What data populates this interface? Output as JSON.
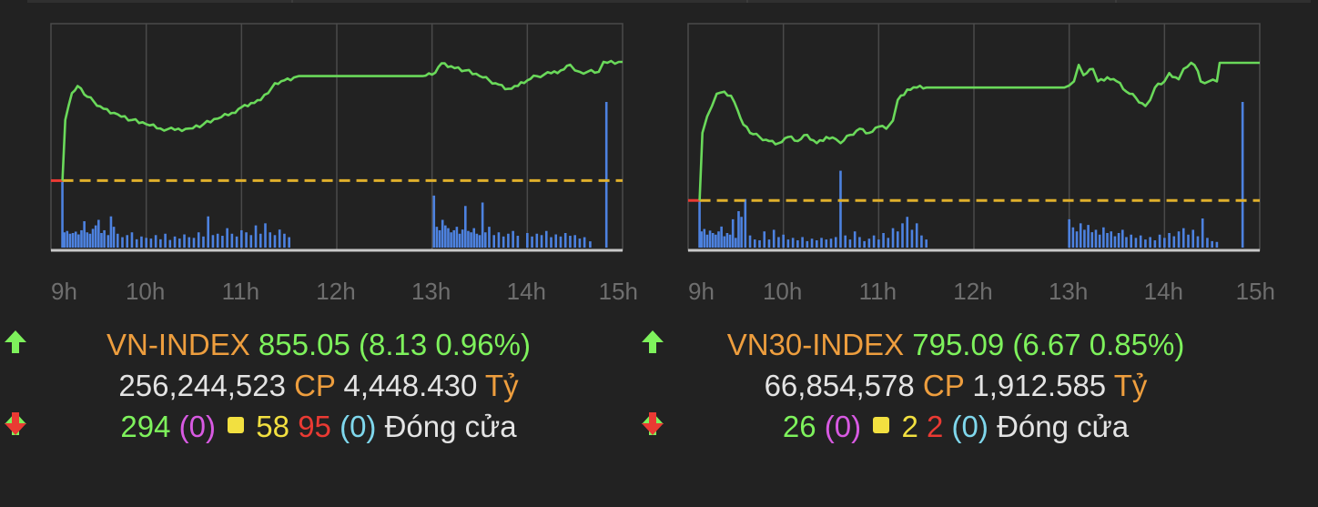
{
  "colors": {
    "background": "#222222",
    "price_line": "#6ad95a",
    "reference_line": "#e0b02c",
    "volume_bar": "#4d82e0",
    "axis": "#c8c8c8",
    "grid": "#4a4a4a",
    "up": "#7ef25c",
    "down": "#ea3a33",
    "unchanged": "#f2e040"
  },
  "icons": {
    "up": "arrow-up-icon",
    "down": "arrow-down-icon",
    "unchanged": "square-icon"
  },
  "panels": [
    {
      "index_name": "VN-INDEX",
      "value": "855.05",
      "change": "(8.13 0.96%)",
      "volume": "256,244,523",
      "volume_unit": "CP",
      "turnover": "4,448.430",
      "turnover_unit": "Tỷ",
      "advances": "294",
      "advances_ceiling": "(0)",
      "unchanged": "58",
      "declines": "95",
      "declines_floor": "(0)",
      "status": "Đóng cửa"
    },
    {
      "index_name": "VN30-INDEX",
      "value": "795.09",
      "change": "(6.67 0.85%)",
      "volume": "66,854,578",
      "volume_unit": "CP",
      "turnover": "1,912.585",
      "turnover_unit": "Tỷ",
      "advances": "26",
      "advances_ceiling": "(0)",
      "unchanged": "2",
      "declines": "2",
      "declines_floor": "(0)",
      "status": "Đóng cửa"
    }
  ],
  "chart_data": [
    {
      "type": "line",
      "series_name": "VN-INDEX",
      "x_ticks": [
        "9h",
        "10h",
        "11h",
        "12h",
        "13h",
        "14h",
        "15h"
      ],
      "x_range": [
        9,
        15
      ],
      "y_range": [
        842,
        858
      ],
      "reference": 846.92,
      "close": 855.05,
      "grid": true,
      "price": [
        [
          9.0,
          846.92
        ],
        [
          9.12,
          846.92
        ],
        [
          9.15,
          851.2
        ],
        [
          9.22,
          853.1
        ],
        [
          9.28,
          853.6
        ],
        [
          9.35,
          853.0
        ],
        [
          9.45,
          852.5
        ],
        [
          9.55,
          852.0
        ],
        [
          9.7,
          851.6
        ],
        [
          9.85,
          851.2
        ],
        [
          10.0,
          850.9
        ],
        [
          10.15,
          850.6
        ],
        [
          10.3,
          850.5
        ],
        [
          10.45,
          850.6
        ],
        [
          10.6,
          850.9
        ],
        [
          10.75,
          851.3
        ],
        [
          10.9,
          851.7
        ],
        [
          11.0,
          852.1
        ],
        [
          11.1,
          852.4
        ],
        [
          11.2,
          852.6
        ],
        [
          11.28,
          853.1
        ],
        [
          11.35,
          853.8
        ],
        [
          11.45,
          854.0
        ],
        [
          11.55,
          854.2
        ],
        [
          11.6,
          854.3
        ],
        [
          12.9,
          854.3
        ],
        [
          13.0,
          854.4
        ],
        [
          13.1,
          855.2
        ],
        [
          13.2,
          855.0
        ],
        [
          13.35,
          854.7
        ],
        [
          13.5,
          854.3
        ],
        [
          13.6,
          854.0
        ],
        [
          13.7,
          853.7
        ],
        [
          13.8,
          853.4
        ],
        [
          13.9,
          853.6
        ],
        [
          14.0,
          854.0
        ],
        [
          14.1,
          854.3
        ],
        [
          14.25,
          854.5
        ],
        [
          14.35,
          854.7
        ],
        [
          14.45,
          855.1
        ],
        [
          14.5,
          854.7
        ],
        [
          14.55,
          854.6
        ],
        [
          14.75,
          854.6
        ],
        [
          14.8,
          855.3
        ],
        [
          15.0,
          855.3
        ]
      ],
      "volume": [
        [
          9.12,
          9.5
        ],
        [
          9.14,
          2.2
        ],
        [
          9.17,
          2.4
        ],
        [
          9.2,
          2.0
        ],
        [
          9.23,
          2.1
        ],
        [
          9.26,
          2.3
        ],
        [
          9.29,
          1.9
        ],
        [
          9.32,
          2.5
        ],
        [
          9.35,
          3.8
        ],
        [
          9.38,
          2.2
        ],
        [
          9.41,
          2.0
        ],
        [
          9.44,
          2.7
        ],
        [
          9.47,
          3.2
        ],
        [
          9.5,
          4.0
        ],
        [
          9.53,
          2.1
        ],
        [
          9.56,
          2.5
        ],
        [
          9.6,
          1.8
        ],
        [
          9.63,
          4.5
        ],
        [
          9.66,
          3.0
        ],
        [
          9.7,
          2.0
        ],
        [
          9.75,
          1.5
        ],
        [
          9.8,
          1.8
        ],
        [
          9.85,
          2.2
        ],
        [
          9.9,
          1.2
        ],
        [
          9.95,
          1.6
        ],
        [
          10.0,
          1.4
        ],
        [
          10.05,
          1.3
        ],
        [
          10.1,
          1.8
        ],
        [
          10.15,
          1.2
        ],
        [
          10.2,
          2.0
        ],
        [
          10.25,
          1.1
        ],
        [
          10.3,
          1.6
        ],
        [
          10.35,
          1.3
        ],
        [
          10.4,
          1.9
        ],
        [
          10.45,
          1.5
        ],
        [
          10.5,
          1.4
        ],
        [
          10.55,
          2.2
        ],
        [
          10.6,
          1.6
        ],
        [
          10.65,
          4.5
        ],
        [
          10.7,
          1.8
        ],
        [
          10.75,
          2.0
        ],
        [
          10.8,
          1.7
        ],
        [
          10.85,
          2.8
        ],
        [
          10.9,
          2.0
        ],
        [
          10.95,
          1.6
        ],
        [
          11.0,
          2.5
        ],
        [
          11.05,
          2.2
        ],
        [
          11.1,
          1.8
        ],
        [
          11.15,
          3.2
        ],
        [
          11.2,
          2.0
        ],
        [
          11.25,
          3.5
        ],
        [
          11.3,
          2.2
        ],
        [
          11.35,
          1.8
        ],
        [
          11.4,
          2.6
        ],
        [
          11.45,
          2.0
        ],
        [
          11.5,
          1.5
        ],
        [
          13.02,
          7.5
        ],
        [
          13.05,
          3.0
        ],
        [
          13.08,
          2.5
        ],
        [
          13.11,
          4.0
        ],
        [
          13.14,
          3.2
        ],
        [
          13.17,
          2.8
        ],
        [
          13.2,
          2.2
        ],
        [
          13.23,
          2.5
        ],
        [
          13.26,
          3.0
        ],
        [
          13.29,
          2.0
        ],
        [
          13.32,
          2.6
        ],
        [
          13.35,
          6.0
        ],
        [
          13.38,
          2.4
        ],
        [
          13.41,
          2.2
        ],
        [
          13.44,
          2.8
        ],
        [
          13.47,
          2.0
        ],
        [
          13.5,
          1.8
        ],
        [
          13.53,
          6.5
        ],
        [
          13.56,
          2.2
        ],
        [
          13.6,
          3.0
        ],
        [
          13.65,
          1.8
        ],
        [
          13.7,
          2.2
        ],
        [
          13.75,
          1.6
        ],
        [
          13.8,
          2.0
        ],
        [
          13.85,
          2.4
        ],
        [
          13.9,
          1.7
        ],
        [
          14.0,
          2.1
        ],
        [
          14.05,
          1.6
        ],
        [
          14.1,
          2.0
        ],
        [
          14.15,
          1.8
        ],
        [
          14.2,
          2.4
        ],
        [
          14.25,
          1.5
        ],
        [
          14.3,
          1.9
        ],
        [
          14.35,
          1.6
        ],
        [
          14.4,
          2.1
        ],
        [
          14.45,
          1.7
        ],
        [
          14.5,
          1.8
        ],
        [
          14.55,
          1.3
        ],
        [
          14.6,
          1.5
        ],
        [
          14.66,
          0.9
        ],
        [
          14.83,
          21.0
        ]
      ]
    },
    {
      "type": "line",
      "series_name": "VN30-INDEX",
      "x_ticks": [
        "9h",
        "10h",
        "11h",
        "12h",
        "13h",
        "14h",
        "15h"
      ],
      "x_range": [
        9,
        15
      ],
      "y_range": [
        786,
        797
      ],
      "reference": 788.42,
      "close": 795.09,
      "grid": true,
      "price": [
        [
          9.0,
          788.42
        ],
        [
          9.12,
          788.42
        ],
        [
          9.15,
          791.7
        ],
        [
          9.2,
          792.5
        ],
        [
          9.25,
          793.0
        ],
        [
          9.3,
          793.6
        ],
        [
          9.38,
          793.7
        ],
        [
          9.45,
          793.5
        ],
        [
          9.52,
          792.8
        ],
        [
          9.58,
          792.1
        ],
        [
          9.65,
          791.7
        ],
        [
          9.75,
          791.5
        ],
        [
          9.85,
          791.3
        ],
        [
          9.95,
          791.2
        ],
        [
          10.05,
          791.5
        ],
        [
          10.15,
          791.3
        ],
        [
          10.25,
          791.6
        ],
        [
          10.35,
          791.2
        ],
        [
          10.45,
          791.5
        ],
        [
          10.55,
          791.4
        ],
        [
          10.6,
          791.2
        ],
        [
          10.7,
          791.6
        ],
        [
          10.8,
          791.9
        ],
        [
          10.9,
          791.7
        ],
        [
          11.0,
          792.0
        ],
        [
          11.08,
          791.9
        ],
        [
          11.15,
          792.3
        ],
        [
          11.2,
          793.3
        ],
        [
          11.3,
          793.8
        ],
        [
          11.4,
          793.9
        ],
        [
          11.5,
          793.9
        ],
        [
          12.95,
          793.9
        ],
        [
          13.0,
          794.0
        ],
        [
          13.05,
          794.2
        ],
        [
          13.1,
          795.0
        ],
        [
          13.15,
          794.5
        ],
        [
          13.25,
          794.8
        ],
        [
          13.3,
          794.2
        ],
        [
          13.4,
          794.4
        ],
        [
          13.5,
          794.2
        ],
        [
          13.6,
          793.7
        ],
        [
          13.7,
          793.4
        ],
        [
          13.8,
          793.0
        ],
        [
          13.85,
          793.3
        ],
        [
          13.9,
          793.9
        ],
        [
          14.0,
          794.2
        ],
        [
          14.05,
          794.6
        ],
        [
          14.15,
          794.3
        ],
        [
          14.2,
          794.8
        ],
        [
          14.28,
          795.1
        ],
        [
          14.35,
          794.7
        ],
        [
          14.38,
          794.2
        ],
        [
          14.55,
          794.2
        ],
        [
          14.58,
          795.1
        ],
        [
          15.0,
          795.1
        ]
      ],
      "volume": [
        [
          9.12,
          6.0
        ],
        [
          9.14,
          2.0
        ],
        [
          9.17,
          2.3
        ],
        [
          9.2,
          1.6
        ],
        [
          9.23,
          2.1
        ],
        [
          9.26,
          1.8
        ],
        [
          9.29,
          1.6
        ],
        [
          9.32,
          2.0
        ],
        [
          9.35,
          2.6
        ],
        [
          9.38,
          1.4
        ],
        [
          9.41,
          1.8
        ],
        [
          9.44,
          1.6
        ],
        [
          9.47,
          3.5
        ],
        [
          9.5,
          1.2
        ],
        [
          9.53,
          4.5
        ],
        [
          9.56,
          3.8
        ],
        [
          9.6,
          6.0
        ],
        [
          9.65,
          1.5
        ],
        [
          9.7,
          1.0
        ],
        [
          9.75,
          0.9
        ],
        [
          9.8,
          2.0
        ],
        [
          9.85,
          1.0
        ],
        [
          9.9,
          2.2
        ],
        [
          9.95,
          1.3
        ],
        [
          10.0,
          1.6
        ],
        [
          10.05,
          1.0
        ],
        [
          10.1,
          1.2
        ],
        [
          10.15,
          0.9
        ],
        [
          10.2,
          1.3
        ],
        [
          10.25,
          0.8
        ],
        [
          10.3,
          1.1
        ],
        [
          10.35,
          0.9
        ],
        [
          10.4,
          1.2
        ],
        [
          10.45,
          1.0
        ],
        [
          10.5,
          1.1
        ],
        [
          10.55,
          1.3
        ],
        [
          10.6,
          9.5
        ],
        [
          10.65,
          1.5
        ],
        [
          10.7,
          1.0
        ],
        [
          10.75,
          2.0
        ],
        [
          10.8,
          1.3
        ],
        [
          10.85,
          0.8
        ],
        [
          10.9,
          1.1
        ],
        [
          10.95,
          1.5
        ],
        [
          11.0,
          1.0
        ],
        [
          11.05,
          1.8
        ],
        [
          11.1,
          1.2
        ],
        [
          11.15,
          2.4
        ],
        [
          11.2,
          2.0
        ],
        [
          11.25,
          3.0
        ],
        [
          11.3,
          3.8
        ],
        [
          11.35,
          2.2
        ],
        [
          11.4,
          3.0
        ],
        [
          11.45,
          1.5
        ],
        [
          11.5,
          1.0
        ],
        [
          13.0,
          3.5
        ],
        [
          13.04,
          2.5
        ],
        [
          13.08,
          2.0
        ],
        [
          13.12,
          3.0
        ],
        [
          13.16,
          2.2
        ],
        [
          13.2,
          2.8
        ],
        [
          13.24,
          1.9
        ],
        [
          13.28,
          2.2
        ],
        [
          13.32,
          1.6
        ],
        [
          13.36,
          2.5
        ],
        [
          13.4,
          1.8
        ],
        [
          13.44,
          2.0
        ],
        [
          13.48,
          1.4
        ],
        [
          13.52,
          1.8
        ],
        [
          13.56,
          2.2
        ],
        [
          13.6,
          1.3
        ],
        [
          13.65,
          1.6
        ],
        [
          13.7,
          1.2
        ],
        [
          13.75,
          1.5
        ],
        [
          13.8,
          1.0
        ],
        [
          13.85,
          1.3
        ],
        [
          13.9,
          0.9
        ],
        [
          13.95,
          1.6
        ],
        [
          14.0,
          1.2
        ],
        [
          14.05,
          1.8
        ],
        [
          14.1,
          1.4
        ],
        [
          14.15,
          2.0
        ],
        [
          14.2,
          2.4
        ],
        [
          14.25,
          1.6
        ],
        [
          14.3,
          2.2
        ],
        [
          14.35,
          1.4
        ],
        [
          14.4,
          3.6
        ],
        [
          14.45,
          1.2
        ],
        [
          14.5,
          0.8
        ],
        [
          14.55,
          0.7
        ],
        [
          14.82,
          18.0
        ]
      ]
    }
  ]
}
